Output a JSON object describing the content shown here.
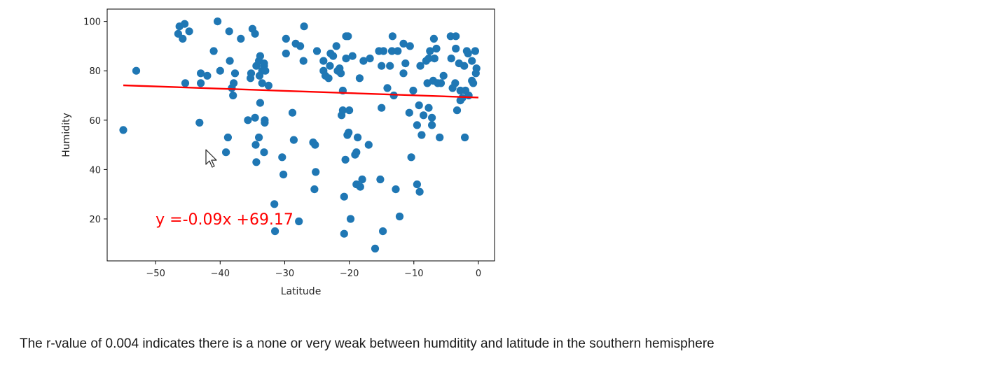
{
  "chart_data": {
    "type": "scatter",
    "xlabel": "Latitude",
    "ylabel": "Humidity",
    "xlim": [
      -57.5,
      2.5
    ],
    "ylim": [
      3,
      105
    ],
    "xticks": [
      "−50",
      "−40",
      "−30",
      "−20",
      "−10",
      "0"
    ],
    "xtick_values": [
      -50,
      -40,
      -30,
      -20,
      -10,
      0
    ],
    "yticks": [
      "20",
      "40",
      "60",
      "80",
      "100"
    ],
    "ytick_values": [
      20,
      40,
      60,
      80,
      100
    ],
    "point_color": "#1f77b4",
    "line_color": "#ff0000",
    "grid": false,
    "regression": {
      "slope": -0.09,
      "intercept": 69.17,
      "x_range": [
        -55,
        0
      ]
    },
    "annotation": {
      "text": "y =-0.09x +69.17",
      "x": -50,
      "y": 20
    },
    "points": [
      [
        -55,
        56
      ],
      [
        -53,
        80
      ],
      [
        -46.5,
        95
      ],
      [
        -46.3,
        98
      ],
      [
        -45.8,
        93
      ],
      [
        -45.5,
        99
      ],
      [
        -44.8,
        96
      ],
      [
        -45.4,
        75
      ],
      [
        -43.2,
        59
      ],
      [
        -43,
        79
      ],
      [
        -43,
        75
      ],
      [
        -42,
        78
      ],
      [
        -41,
        88
      ],
      [
        -40.4,
        100
      ],
      [
        -40,
        80
      ],
      [
        -39.1,
        47
      ],
      [
        -38.8,
        53
      ],
      [
        -38.6,
        96
      ],
      [
        -38.5,
        84
      ],
      [
        -38.2,
        73
      ],
      [
        -38,
        70
      ],
      [
        -37.9,
        75
      ],
      [
        -37.7,
        79
      ],
      [
        -36.8,
        93
      ],
      [
        -35.7,
        60
      ],
      [
        -35.3,
        77
      ],
      [
        -35.2,
        79
      ],
      [
        -35,
        97
      ],
      [
        -34.6,
        61
      ],
      [
        -34.6,
        95
      ],
      [
        -34.4,
        43
      ],
      [
        -34.5,
        50
      ],
      [
        -34.4,
        82
      ],
      [
        -34,
        84
      ],
      [
        -34,
        53
      ],
      [
        -33.8,
        86
      ],
      [
        -33.9,
        78
      ],
      [
        -33.5,
        80
      ],
      [
        -33.5,
        75
      ],
      [
        -33.2,
        82
      ],
      [
        -33.2,
        47
      ],
      [
        -33.1,
        60
      ],
      [
        -33.1,
        59
      ],
      [
        -33.8,
        67
      ],
      [
        -33,
        80
      ],
      [
        -33.2,
        83
      ],
      [
        -32.5,
        74
      ],
      [
        -31.5,
        15
      ],
      [
        -31.6,
        26
      ],
      [
        -30.4,
        45
      ],
      [
        -30.2,
        38
      ],
      [
        -29.8,
        93
      ],
      [
        -29.8,
        87
      ],
      [
        -28.8,
        63
      ],
      [
        -28.6,
        52
      ],
      [
        -28.3,
        91
      ],
      [
        -27.6,
        90
      ],
      [
        -27.8,
        19
      ],
      [
        -27.1,
        84
      ],
      [
        -27,
        98
      ],
      [
        -25.6,
        51
      ],
      [
        -25.3,
        50
      ],
      [
        -25.4,
        32
      ],
      [
        -25.2,
        39
      ],
      [
        -25,
        88
      ],
      [
        -24,
        84
      ],
      [
        -24,
        80
      ],
      [
        -23.7,
        78
      ],
      [
        -23.2,
        77
      ],
      [
        -23,
        82
      ],
      [
        -22.9,
        87
      ],
      [
        -22.5,
        86
      ],
      [
        -22,
        90
      ],
      [
        -21.8,
        80
      ],
      [
        -21.5,
        81
      ],
      [
        -21.3,
        79
      ],
      [
        -21.2,
        62
      ],
      [
        -21,
        72
      ],
      [
        -21,
        64
      ],
      [
        -20.8,
        14
      ],
      [
        -20.8,
        29
      ],
      [
        -20.6,
        44
      ],
      [
        -20.5,
        94
      ],
      [
        -20.5,
        85
      ],
      [
        -20.3,
        54
      ],
      [
        -20.2,
        94
      ],
      [
        -20.1,
        55
      ],
      [
        -20,
        64
      ],
      [
        -19.8,
        20
      ],
      [
        -19.5,
        86
      ],
      [
        -19.1,
        46
      ],
      [
        -18.9,
        47
      ],
      [
        -18.9,
        34
      ],
      [
        -18.7,
        53
      ],
      [
        -18.4,
        77
      ],
      [
        -18.3,
        33
      ],
      [
        -18,
        36
      ],
      [
        -17.8,
        84
      ],
      [
        -17,
        50
      ],
      [
        -16.8,
        85
      ],
      [
        -16,
        8
      ],
      [
        -15.4,
        88
      ],
      [
        -15.2,
        36
      ],
      [
        -15,
        65
      ],
      [
        -15,
        82
      ],
      [
        -14.8,
        15
      ],
      [
        -14.7,
        88
      ],
      [
        -14.1,
        73
      ],
      [
        -13.7,
        82
      ],
      [
        -13.4,
        88
      ],
      [
        -13.3,
        94
      ],
      [
        -13.1,
        70
      ],
      [
        -12.8,
        32
      ],
      [
        -12.5,
        88
      ],
      [
        -12.2,
        21
      ],
      [
        -11.6,
        91
      ],
      [
        -11.6,
        79
      ],
      [
        -11.3,
        83
      ],
      [
        -10.7,
        63
      ],
      [
        -10.6,
        90
      ],
      [
        -10.4,
        45
      ],
      [
        -10.1,
        72
      ],
      [
        -9.5,
        34
      ],
      [
        -9.5,
        58
      ],
      [
        -9.2,
        66
      ],
      [
        -9.1,
        31
      ],
      [
        -9,
        82
      ],
      [
        -8.8,
        54
      ],
      [
        -8.5,
        62
      ],
      [
        -8.1,
        84
      ],
      [
        -7.9,
        75
      ],
      [
        -7.7,
        65
      ],
      [
        -7.7,
        85
      ],
      [
        -7.5,
        88
      ],
      [
        -7.2,
        61
      ],
      [
        -7.2,
        58
      ],
      [
        -7,
        76
      ],
      [
        -6.9,
        93
      ],
      [
        -6.8,
        85
      ],
      [
        -6.5,
        89
      ],
      [
        -6.3,
        75
      ],
      [
        -6,
        53
      ],
      [
        -5.8,
        75
      ],
      [
        -5.4,
        78
      ],
      [
        -4.3,
        94
      ],
      [
        -4.2,
        85
      ],
      [
        -4,
        73
      ],
      [
        -3.6,
        75
      ],
      [
        -3.5,
        94
      ],
      [
        -3.5,
        89
      ],
      [
        -3.3,
        64
      ],
      [
        -3,
        83
      ],
      [
        -2.8,
        68
      ],
      [
        -2.8,
        72
      ],
      [
        -2.5,
        69
      ],
      [
        -2.2,
        82
      ],
      [
        -2.1,
        53
      ],
      [
        -2,
        72
      ],
      [
        -1.8,
        88
      ],
      [
        -1.6,
        87
      ],
      [
        -1.5,
        70
      ],
      [
        -1,
        76
      ],
      [
        -1,
        84
      ],
      [
        -0.8,
        75
      ],
      [
        -0.5,
        88
      ],
      [
        -0.4,
        79
      ],
      [
        -0.3,
        81
      ]
    ]
  },
  "caption": "The r-value of 0.004 indicates there is a none or very weak between humditity and latitude in the southern hemisphere",
  "cursor_icon": "mouse-pointer-icon"
}
